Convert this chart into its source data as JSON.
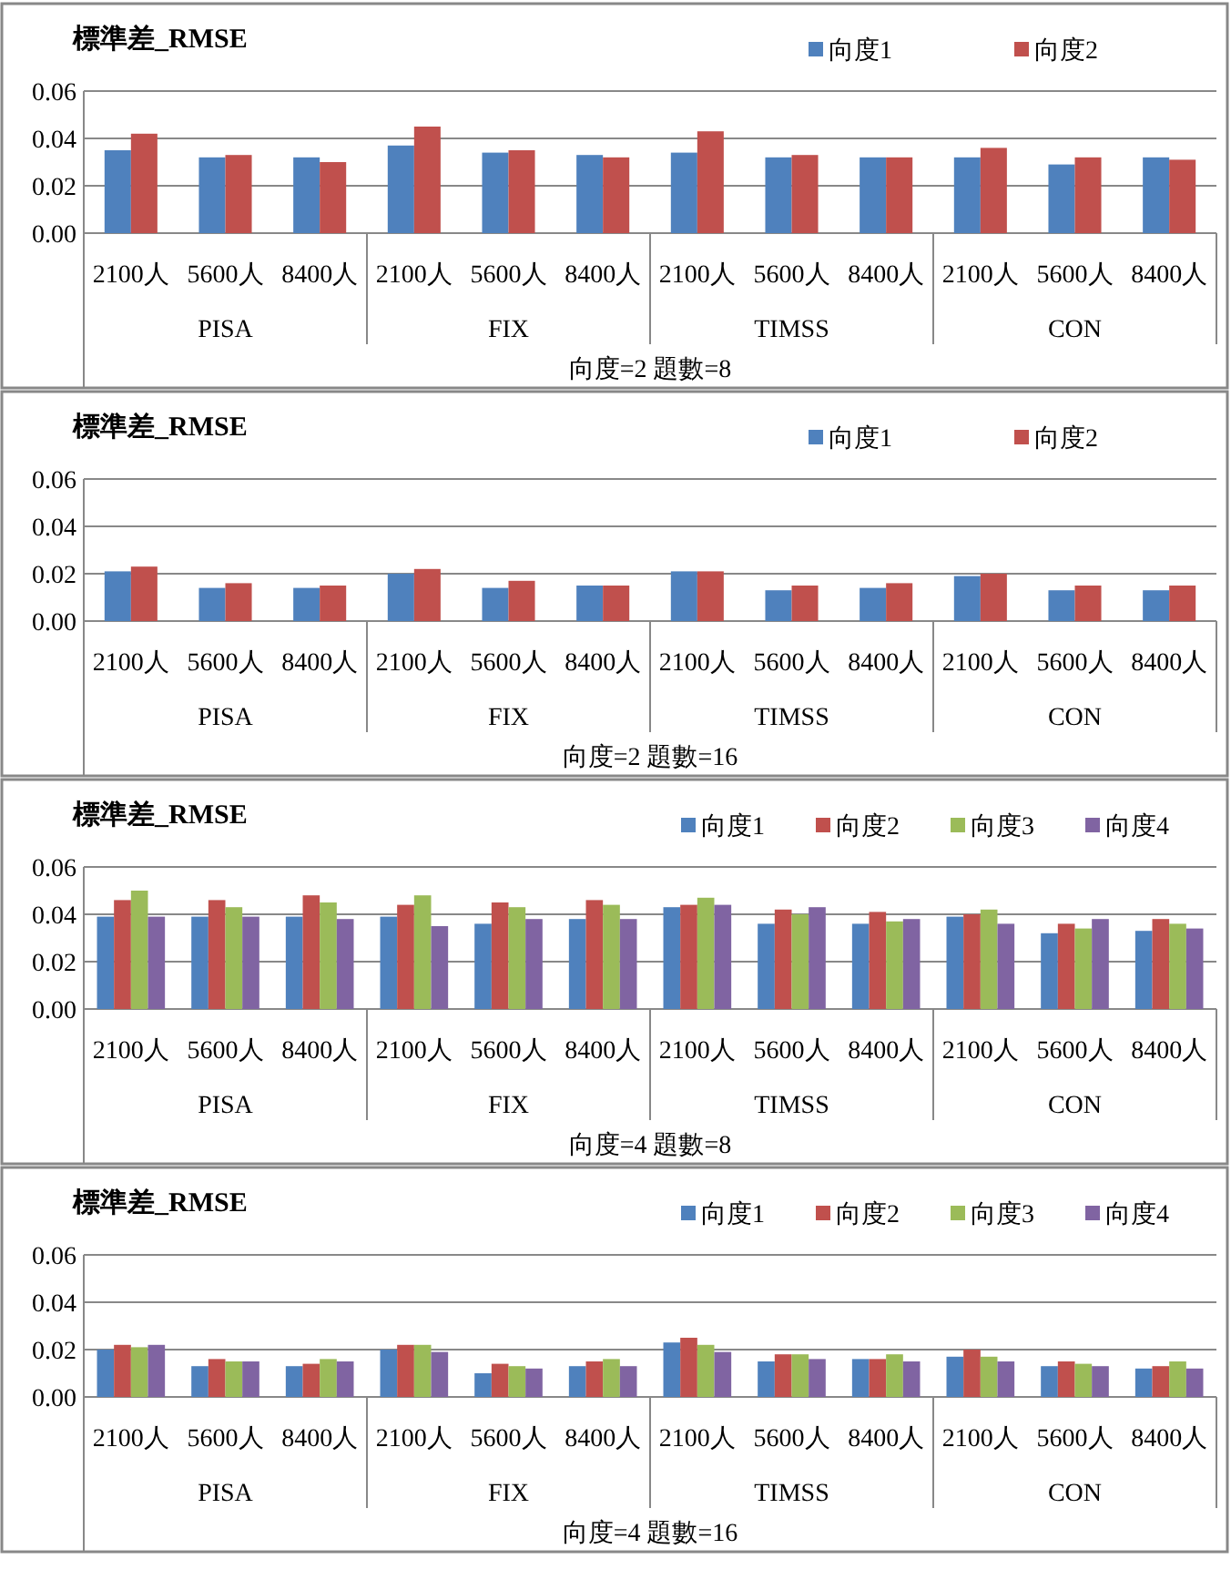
{
  "chart_data": [
    {
      "type": "bar",
      "title": "標準差_RMSE",
      "xlabel": "向度=2 題數=8",
      "categories": [
        "2100人",
        "5600人",
        "8400人",
        "2100人",
        "5600人",
        "8400人",
        "2100人",
        "5600人",
        "8400人",
        "2100人",
        "5600人",
        "8400人"
      ],
      "annotations": [
        "PISA",
        "FIX",
        "TIMSS",
        "CON"
      ],
      "series": [
        {
          "name": "向度1",
          "color": "#4f81bd",
          "values": [
            0.035,
            0.032,
            0.032,
            0.037,
            0.034,
            0.033,
            0.034,
            0.032,
            0.032,
            0.032,
            0.029,
            0.032
          ]
        },
        {
          "name": "向度2",
          "color": "#c0504d",
          "values": [
            0.042,
            0.033,
            0.03,
            0.045,
            0.035,
            0.032,
            0.043,
            0.033,
            0.032,
            0.036,
            0.032,
            0.031
          ]
        }
      ],
      "ylim": [
        0,
        0.06
      ],
      "yticks": [
        {
          "value": 0,
          "label": "0.00"
        },
        {
          "value": 0.02,
          "label": "0.02"
        },
        {
          "value": 0.04,
          "label": "0.04"
        },
        {
          "value": 0.06,
          "label": "0.06"
        }
      ],
      "grid": "y",
      "legend": "top right"
    },
    {
      "type": "bar",
      "title": "標準差_RMSE",
      "xlabel": "向度=2 題數=16",
      "categories": [
        "2100人",
        "5600人",
        "8400人",
        "2100人",
        "5600人",
        "8400人",
        "2100人",
        "5600人",
        "8400人",
        "2100人",
        "5600人",
        "8400人"
      ],
      "annotations": [
        "PISA",
        "FIX",
        "TIMSS",
        "CON"
      ],
      "series": [
        {
          "name": "向度1",
          "color": "#4f81bd",
          "values": [
            0.021,
            0.014,
            0.014,
            0.02,
            0.014,
            0.015,
            0.021,
            0.013,
            0.014,
            0.019,
            0.013,
            0.013
          ]
        },
        {
          "name": "向度2",
          "color": "#c0504d",
          "values": [
            0.023,
            0.016,
            0.015,
            0.022,
            0.017,
            0.015,
            0.021,
            0.015,
            0.016,
            0.02,
            0.015,
            0.015
          ]
        }
      ],
      "ylim": [
        0,
        0.06
      ],
      "yticks": [
        {
          "value": 0,
          "label": "0.00"
        },
        {
          "value": 0.02,
          "label": "0.02"
        },
        {
          "value": 0.04,
          "label": "0.04"
        },
        {
          "value": 0.06,
          "label": "0.06"
        }
      ],
      "grid": "y",
      "legend": "top right"
    },
    {
      "type": "bar",
      "title": "標準差_RMSE",
      "xlabel": "向度=4 題數=8",
      "categories": [
        "2100人",
        "5600人",
        "8400人",
        "2100人",
        "5600人",
        "8400人",
        "2100人",
        "5600人",
        "8400人",
        "2100人",
        "5600人",
        "8400人"
      ],
      "annotations": [
        "PISA",
        "FIX",
        "TIMSS",
        "CON"
      ],
      "series": [
        {
          "name": "向度1",
          "color": "#4f81bd",
          "values": [
            0.039,
            0.039,
            0.039,
            0.039,
            0.036,
            0.038,
            0.043,
            0.036,
            0.036,
            0.039,
            0.032,
            0.033
          ]
        },
        {
          "name": "向度2",
          "color": "#c0504d",
          "values": [
            0.046,
            0.046,
            0.048,
            0.044,
            0.045,
            0.046,
            0.044,
            0.042,
            0.041,
            0.04,
            0.036,
            0.038
          ]
        },
        {
          "name": "向度3",
          "color": "#9bbb59",
          "values": [
            0.05,
            0.043,
            0.045,
            0.048,
            0.043,
            0.044,
            0.047,
            0.04,
            0.037,
            0.042,
            0.034,
            0.036
          ]
        },
        {
          "name": "向度4",
          "color": "#8064a2",
          "values": [
            0.039,
            0.039,
            0.038,
            0.035,
            0.038,
            0.038,
            0.044,
            0.043,
            0.038,
            0.036,
            0.038,
            0.034
          ]
        }
      ],
      "ylim": [
        0,
        0.06
      ],
      "yticks": [
        {
          "value": 0,
          "label": "0.00"
        },
        {
          "value": 0.02,
          "label": "0.02"
        },
        {
          "value": 0.04,
          "label": "0.04"
        },
        {
          "value": 0.06,
          "label": "0.06"
        }
      ],
      "grid": "y",
      "legend": "top right"
    },
    {
      "type": "bar",
      "title": "標準差_RMSE",
      "xlabel": "向度=4 題數=16",
      "categories": [
        "2100人",
        "5600人",
        "8400人",
        "2100人",
        "5600人",
        "8400人",
        "2100人",
        "5600人",
        "8400人",
        "2100人",
        "5600人",
        "8400人"
      ],
      "annotations": [
        "PISA",
        "FIX",
        "TIMSS",
        "CON"
      ],
      "series": [
        {
          "name": "向度1",
          "color": "#4f81bd",
          "values": [
            0.02,
            0.013,
            0.013,
            0.02,
            0.01,
            0.013,
            0.023,
            0.015,
            0.016,
            0.017,
            0.013,
            0.012
          ]
        },
        {
          "name": "向度2",
          "color": "#c0504d",
          "values": [
            0.022,
            0.016,
            0.014,
            0.022,
            0.014,
            0.015,
            0.025,
            0.018,
            0.016,
            0.02,
            0.015,
            0.013
          ]
        },
        {
          "name": "向度3",
          "color": "#9bbb59",
          "values": [
            0.021,
            0.015,
            0.016,
            0.022,
            0.013,
            0.016,
            0.022,
            0.018,
            0.018,
            0.017,
            0.014,
            0.015
          ]
        },
        {
          "name": "向度4",
          "color": "#8064a2",
          "values": [
            0.022,
            0.015,
            0.015,
            0.019,
            0.012,
            0.013,
            0.019,
            0.016,
            0.015,
            0.015,
            0.013,
            0.012
          ]
        }
      ],
      "ylim": [
        0,
        0.06
      ],
      "yticks": [
        {
          "value": 0,
          "label": "0.00"
        },
        {
          "value": 0.02,
          "label": "0.02"
        },
        {
          "value": 0.04,
          "label": "0.04"
        },
        {
          "value": 0.06,
          "label": "0.06"
        }
      ],
      "grid": "y",
      "legend": "top right"
    }
  ]
}
